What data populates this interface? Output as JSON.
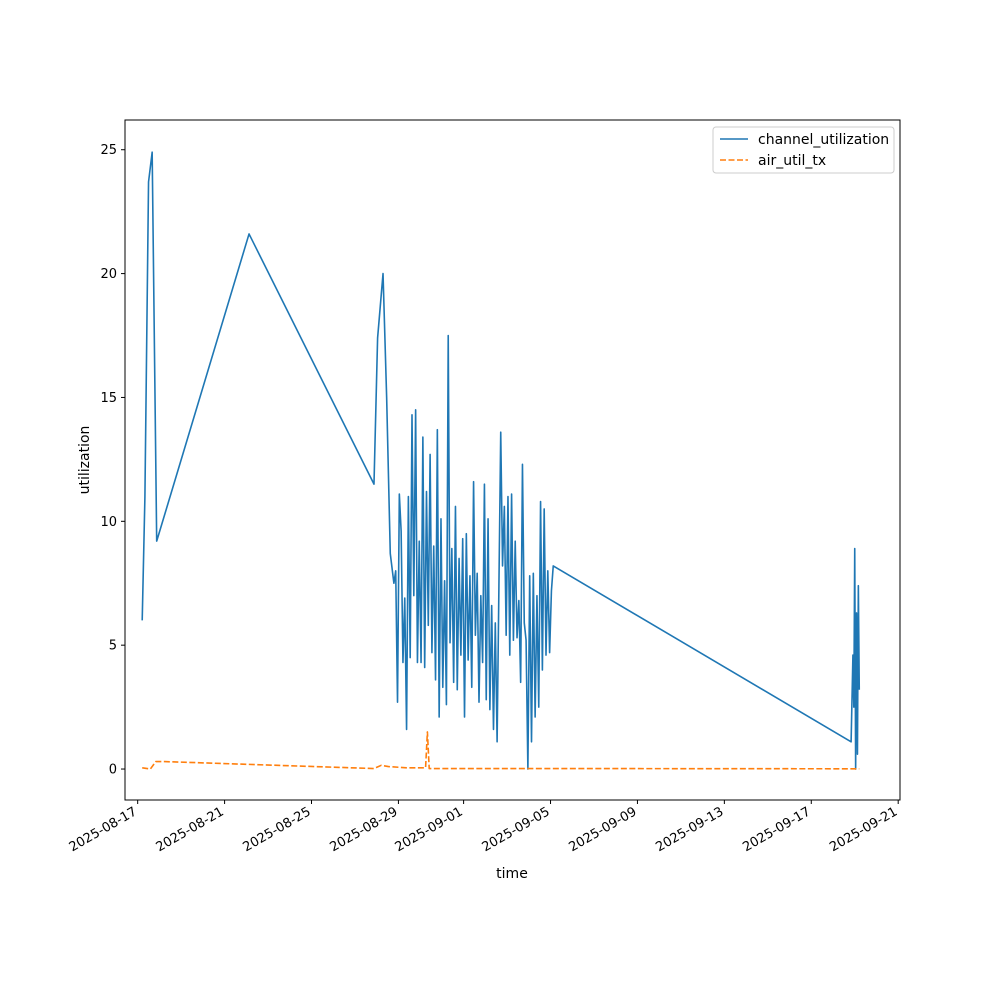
{
  "chart_data": {
    "type": "line",
    "title": "",
    "xlabel": "time",
    "ylabel": "utilization",
    "xlim": [
      "2025-08-16T10:00",
      "2025-09-21T02:00"
    ],
    "ylim": [
      -1.25,
      26.2
    ],
    "grid": false,
    "legend_position": "top-right",
    "x_ticks": [
      "2025-08-17",
      "2025-08-21",
      "2025-08-25",
      "2025-08-29",
      "2025-09-01",
      "2025-09-05",
      "2025-09-09",
      "2025-09-13",
      "2025-09-17",
      "2025-09-21"
    ],
    "y_ticks": [
      0,
      5,
      10,
      15,
      20,
      25
    ],
    "series": [
      {
        "name": "channel_utilization",
        "color": "#1f77b4",
        "dash": "solid",
        "points": [
          [
            "2025-08-17T05:00",
            6.0
          ],
          [
            "2025-08-17T08:00",
            11.0
          ],
          [
            "2025-08-17T12:00",
            23.7
          ],
          [
            "2025-08-17T16:00",
            24.9
          ],
          [
            "2025-08-17T21:00",
            9.2
          ],
          [
            "2025-08-22T03:00",
            21.6
          ],
          [
            "2025-08-27T21:00",
            11.5
          ],
          [
            "2025-08-28T01:00",
            17.4
          ],
          [
            "2025-08-28T07:00",
            20.0
          ],
          [
            "2025-08-28T11:00",
            15.0
          ],
          [
            "2025-08-28T15:00",
            8.7
          ],
          [
            "2025-08-28T19:00",
            7.5
          ],
          [
            "2025-08-28T21:00",
            8.0
          ],
          [
            "2025-08-28T23:00",
            2.7
          ],
          [
            "2025-08-29T01:00",
            11.1
          ],
          [
            "2025-08-29T03:00",
            9.6
          ],
          [
            "2025-08-29T05:00",
            4.3
          ],
          [
            "2025-08-29T07:00",
            6.9
          ],
          [
            "2025-08-29T09:00",
            1.6
          ],
          [
            "2025-08-29T11:00",
            11.0
          ],
          [
            "2025-08-29T13:00",
            4.5
          ],
          [
            "2025-08-29T15:00",
            14.3
          ],
          [
            "2025-08-29T17:00",
            7.0
          ],
          [
            "2025-08-29T19:00",
            14.5
          ],
          [
            "2025-08-29T21:00",
            4.3
          ],
          [
            "2025-08-29T23:00",
            9.2
          ],
          [
            "2025-08-30T01:00",
            4.3
          ],
          [
            "2025-08-30T03:00",
            13.4
          ],
          [
            "2025-08-30T05:00",
            4.1
          ],
          [
            "2025-08-30T07:00",
            11.2
          ],
          [
            "2025-08-30T09:00",
            5.8
          ],
          [
            "2025-08-30T11:00",
            12.7
          ],
          [
            "2025-08-30T13:00",
            4.7
          ],
          [
            "2025-08-30T15:00",
            9.0
          ],
          [
            "2025-08-30T17:00",
            3.6
          ],
          [
            "2025-08-30T19:00",
            13.7
          ],
          [
            "2025-08-30T21:00",
            2.1
          ],
          [
            "2025-08-30T23:00",
            10.1
          ],
          [
            "2025-08-31T01:00",
            3.3
          ],
          [
            "2025-08-31T03:00",
            7.6
          ],
          [
            "2025-08-31T05:00",
            2.6
          ],
          [
            "2025-08-31T07:00",
            17.5
          ],
          [
            "2025-08-31T09:00",
            5.1
          ],
          [
            "2025-08-31T11:00",
            8.9
          ],
          [
            "2025-08-31T13:00",
            3.5
          ],
          [
            "2025-08-31T15:00",
            10.6
          ],
          [
            "2025-08-31T17:00",
            3.2
          ],
          [
            "2025-08-31T19:00",
            8.5
          ],
          [
            "2025-08-31T21:00",
            4.6
          ],
          [
            "2025-08-31T23:00",
            9.3
          ],
          [
            "2025-09-01T01:00",
            2.1
          ],
          [
            "2025-09-01T03:00",
            9.5
          ],
          [
            "2025-09-01T05:00",
            4.4
          ],
          [
            "2025-09-01T07:00",
            7.8
          ],
          [
            "2025-09-01T09:00",
            3.3
          ],
          [
            "2025-09-01T11:00",
            11.6
          ],
          [
            "2025-09-01T13:00",
            5.4
          ],
          [
            "2025-09-01T15:00",
            7.9
          ],
          [
            "2025-09-01T17:00",
            2.7
          ],
          [
            "2025-09-01T19:00",
            7.0
          ],
          [
            "2025-09-01T21:00",
            4.3
          ],
          [
            "2025-09-01T23:00",
            11.5
          ],
          [
            "2025-09-02T01:00",
            2.8
          ],
          [
            "2025-09-02T03:00",
            10.1
          ],
          [
            "2025-09-02T05:00",
            2.4
          ],
          [
            "2025-09-02T07:00",
            6.6
          ],
          [
            "2025-09-02T09:00",
            1.6
          ],
          [
            "2025-09-02T11:00",
            5.9
          ],
          [
            "2025-09-02T13:00",
            1.1
          ],
          [
            "2025-09-02T15:00",
            7.4
          ],
          [
            "2025-09-02T17:00",
            13.6
          ],
          [
            "2025-09-02T19:00",
            8.2
          ],
          [
            "2025-09-02T21:00",
            10.6
          ],
          [
            "2025-09-02T23:00",
            5.4
          ],
          [
            "2025-09-03T01:00",
            11.0
          ],
          [
            "2025-09-03T03:00",
            4.6
          ],
          [
            "2025-09-03T05:00",
            11.1
          ],
          [
            "2025-09-03T07:00",
            5.2
          ],
          [
            "2025-09-03T09:00",
            9.2
          ],
          [
            "2025-09-03T11:00",
            5.3
          ],
          [
            "2025-09-03T13:00",
            6.8
          ],
          [
            "2025-09-03T15:00",
            3.5
          ],
          [
            "2025-09-03T17:00",
            12.3
          ],
          [
            "2025-09-03T19:00",
            5.9
          ],
          [
            "2025-09-03T21:00",
            5.2
          ],
          [
            "2025-09-03T23:00",
            0.0
          ],
          [
            "2025-09-04T01:00",
            7.8
          ],
          [
            "2025-09-04T03:00",
            1.1
          ],
          [
            "2025-09-04T05:00",
            7.9
          ],
          [
            "2025-09-04T07:00",
            2.1
          ],
          [
            "2025-09-04T09:00",
            7.0
          ],
          [
            "2025-09-04T11:00",
            2.5
          ],
          [
            "2025-09-04T13:00",
            10.8
          ],
          [
            "2025-09-04T15:00",
            4.0
          ],
          [
            "2025-09-04T17:00",
            10.5
          ],
          [
            "2025-09-04T19:00",
            4.6
          ],
          [
            "2025-09-04T21:00",
            8.0
          ],
          [
            "2025-09-04T23:00",
            4.7
          ],
          [
            "2025-09-05T01:00",
            7.2
          ],
          [
            "2025-09-05T03:00",
            8.2
          ],
          [
            "2025-09-18T20:00",
            1.1
          ],
          [
            "2025-09-18T22:00",
            4.6
          ],
          [
            "2025-09-18T23:00",
            2.5
          ],
          [
            "2025-09-19T00:00",
            8.9
          ],
          [
            "2025-09-19T01:00",
            0.0
          ],
          [
            "2025-09-19T02:00",
            6.3
          ],
          [
            "2025-09-19T03:00",
            0.6
          ],
          [
            "2025-09-19T04:00",
            7.4
          ],
          [
            "2025-09-19T05:00",
            3.2
          ]
        ]
      },
      {
        "name": "air_util_tx",
        "color": "#ff7f0e",
        "dash": "dashed",
        "points": [
          [
            "2025-08-17T05:00",
            0.05
          ],
          [
            "2025-08-17T14:00",
            0.0
          ],
          [
            "2025-08-17T20:00",
            0.3
          ],
          [
            "2025-08-18T06:00",
            0.3
          ],
          [
            "2025-08-27T21:00",
            0.02
          ],
          [
            "2025-08-28T05:00",
            0.15
          ],
          [
            "2025-08-28T13:00",
            0.1
          ],
          [
            "2025-08-29T09:00",
            0.05
          ],
          [
            "2025-08-29T21:00",
            0.05
          ],
          [
            "2025-08-30T06:00",
            0.05
          ],
          [
            "2025-08-30T08:00",
            1.5
          ],
          [
            "2025-08-30T10:00",
            0.02
          ],
          [
            "2025-09-01T00:00",
            0.02
          ],
          [
            "2025-09-05T00:00",
            0.02
          ],
          [
            "2025-09-19T05:00",
            0.01
          ]
        ]
      }
    ]
  }
}
